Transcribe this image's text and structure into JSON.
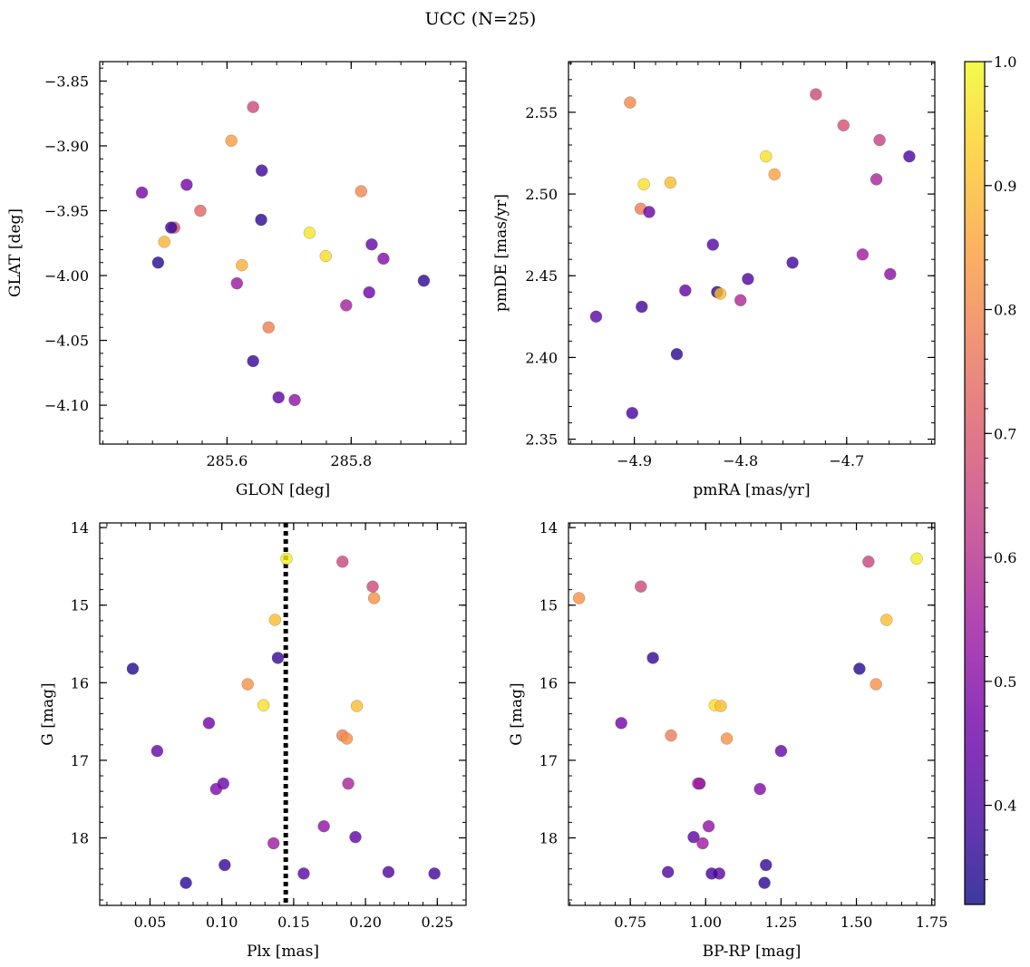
{
  "figure_title": "UCC (N=25)",
  "colorbar": {
    "range": [
      0.32,
      1.0
    ],
    "ticks": [
      0.4,
      0.5,
      0.6,
      0.7,
      0.8,
      0.9,
      1.0
    ],
    "tick_labels": [
      "0.4",
      "0.5",
      "0.6",
      "0.7",
      "0.8",
      "0.9",
      "1.0"
    ],
    "colormap": "plasma",
    "stops": [
      "#0d0887",
      "#46039f",
      "#7201a8",
      "#9c179e",
      "#bd3786",
      "#d8576b",
      "#ed7953",
      "#fb9f3a",
      "#fdca26",
      "#f0f921"
    ]
  },
  "chart_data": [
    {
      "type": "scatter",
      "id": "glon-glat",
      "xlabel": "GLON [deg]",
      "ylabel": "GLAT [deg]",
      "xlim": [
        285.395,
        285.985
      ],
      "ylim": [
        -4.13,
        -3.835
      ],
      "y_inverted": false,
      "xticks": [
        285.6,
        285.8
      ],
      "xtick_labels": [
        "285.6",
        "285.8"
      ],
      "yticks": [
        -3.85,
        -3.9,
        -3.95,
        -4.0,
        -4.05,
        -4.1
      ],
      "ytick_labels": [
        "−3.85",
        "−3.90",
        "−3.95",
        "−4.00",
        "−4.05",
        "−4.10"
      ],
      "points": [
        {
          "x": 285.642,
          "y": -3.87,
          "c": 0.66
        },
        {
          "x": 285.607,
          "y": -3.896,
          "c": 0.84
        },
        {
          "x": 285.656,
          "y": -3.919,
          "c": 0.38
        },
        {
          "x": 285.463,
          "y": -3.936,
          "c": 0.48
        },
        {
          "x": 285.535,
          "y": -3.93,
          "c": 0.47
        },
        {
          "x": 285.816,
          "y": -3.935,
          "c": 0.8
        },
        {
          "x": 285.557,
          "y": -3.95,
          "c": 0.73
        },
        {
          "x": 285.655,
          "y": -3.957,
          "c": 0.36
        },
        {
          "x": 285.515,
          "y": -3.963,
          "c": 0.68
        },
        {
          "x": 285.51,
          "y": -3.963,
          "c": 0.37
        },
        {
          "x": 285.733,
          "y": -3.967,
          "c": 0.97
        },
        {
          "x": 285.499,
          "y": -3.974,
          "c": 0.88
        },
        {
          "x": 285.833,
          "y": -3.976,
          "c": 0.44
        },
        {
          "x": 285.759,
          "y": -3.985,
          "c": 0.95
        },
        {
          "x": 285.852,
          "y": -3.987,
          "c": 0.5
        },
        {
          "x": 285.489,
          "y": -3.99,
          "c": 0.35
        },
        {
          "x": 285.624,
          "y": -3.992,
          "c": 0.87
        },
        {
          "x": 285.917,
          "y": -4.004,
          "c": 0.36
        },
        {
          "x": 285.616,
          "y": -4.006,
          "c": 0.54
        },
        {
          "x": 285.829,
          "y": -4.013,
          "c": 0.46
        },
        {
          "x": 285.792,
          "y": -4.023,
          "c": 0.56
        },
        {
          "x": 285.667,
          "y": -4.04,
          "c": 0.78
        },
        {
          "x": 285.642,
          "y": -4.066,
          "c": 0.37
        },
        {
          "x": 285.683,
          "y": -4.094,
          "c": 0.43
        },
        {
          "x": 285.709,
          "y": -4.096,
          "c": 0.52
        }
      ]
    },
    {
      "type": "scatter",
      "id": "pmra-pmde",
      "xlabel": "pmRA [mas/yr]",
      "ylabel": "pmDE [mas/yr]",
      "xlim": [
        -4.962,
        -4.617
      ],
      "ylim": [
        2.347,
        2.581
      ],
      "y_inverted": false,
      "xticks": [
        -4.9,
        -4.8,
        -4.7
      ],
      "xtick_labels": [
        "−4.9",
        "−4.8",
        "−4.7"
      ],
      "yticks": [
        2.35,
        2.4,
        2.45,
        2.5,
        2.55
      ],
      "ytick_labels": [
        "2.35",
        "2.40",
        "2.45",
        "2.50",
        "2.55"
      ],
      "points": [
        {
          "x": -4.729,
          "y": 2.561,
          "c": 0.66
        },
        {
          "x": -4.904,
          "y": 2.556,
          "c": 0.8
        },
        {
          "x": -4.703,
          "y": 2.542,
          "c": 0.68
        },
        {
          "x": -4.669,
          "y": 2.533,
          "c": 0.64
        },
        {
          "x": -4.776,
          "y": 2.523,
          "c": 0.96
        },
        {
          "x": -4.641,
          "y": 2.523,
          "c": 0.4
        },
        {
          "x": -4.768,
          "y": 2.512,
          "c": 0.85
        },
        {
          "x": -4.672,
          "y": 2.509,
          "c": 0.57
        },
        {
          "x": -4.866,
          "y": 2.507,
          "c": 0.9
        },
        {
          "x": -4.891,
          "y": 2.506,
          "c": 0.96
        },
        {
          "x": -4.894,
          "y": 2.491,
          "c": 0.78
        },
        {
          "x": -4.886,
          "y": 2.489,
          "c": 0.45
        },
        {
          "x": -4.826,
          "y": 2.469,
          "c": 0.42
        },
        {
          "x": -4.685,
          "y": 2.463,
          "c": 0.55
        },
        {
          "x": -4.751,
          "y": 2.458,
          "c": 0.38
        },
        {
          "x": -4.659,
          "y": 2.451,
          "c": 0.51
        },
        {
          "x": -4.793,
          "y": 2.448,
          "c": 0.41
        },
        {
          "x": -4.852,
          "y": 2.441,
          "c": 0.44
        },
        {
          "x": -4.822,
          "y": 2.44,
          "c": 0.36
        },
        {
          "x": -4.819,
          "y": 2.439,
          "c": 0.9
        },
        {
          "x": -4.8,
          "y": 2.435,
          "c": 0.58
        },
        {
          "x": -4.936,
          "y": 2.425,
          "c": 0.43
        },
        {
          "x": -4.893,
          "y": 2.431,
          "c": 0.39
        },
        {
          "x": -4.86,
          "y": 2.402,
          "c": 0.36
        },
        {
          "x": -4.902,
          "y": 2.366,
          "c": 0.4
        }
      ]
    },
    {
      "type": "scatter",
      "id": "plx-g",
      "xlabel": "Plx [mas]",
      "ylabel": "G [mag]",
      "xlim": [
        0.015,
        0.27
      ],
      "ylim": [
        18.87,
        13.94
      ],
      "y_inverted": true,
      "vline": {
        "x": 0.1445,
        "style": "dotted"
      },
      "xticks": [
        0.05,
        0.1,
        0.15,
        0.2,
        0.25
      ],
      "xtick_labels": [
        "0.05",
        "0.10",
        "0.15",
        "0.20",
        "0.25"
      ],
      "yticks": [
        14,
        15,
        16,
        17,
        18
      ],
      "ytick_labels": [
        "14",
        "15",
        "16",
        "17",
        "18"
      ],
      "points": [
        {
          "x": 0.145,
          "y": 14.4,
          "c": 0.98
        },
        {
          "x": 0.184,
          "y": 14.44,
          "c": 0.65
        },
        {
          "x": 0.205,
          "y": 14.76,
          "c": 0.66
        },
        {
          "x": 0.206,
          "y": 14.91,
          "c": 0.82
        },
        {
          "x": 0.137,
          "y": 15.19,
          "c": 0.9
        },
        {
          "x": 0.139,
          "y": 15.68,
          "c": 0.37
        },
        {
          "x": 0.038,
          "y": 15.82,
          "c": 0.35
        },
        {
          "x": 0.118,
          "y": 16.02,
          "c": 0.82
        },
        {
          "x": 0.129,
          "y": 16.29,
          "c": 0.96
        },
        {
          "x": 0.194,
          "y": 16.3,
          "c": 0.9
        },
        {
          "x": 0.091,
          "y": 16.52,
          "c": 0.47
        },
        {
          "x": 0.184,
          "y": 16.68,
          "c": 0.78
        },
        {
          "x": 0.187,
          "y": 16.72,
          "c": 0.82
        },
        {
          "x": 0.055,
          "y": 16.88,
          "c": 0.45
        },
        {
          "x": 0.101,
          "y": 17.3,
          "c": 0.46
        },
        {
          "x": 0.188,
          "y": 17.3,
          "c": 0.57
        },
        {
          "x": 0.096,
          "y": 17.37,
          "c": 0.49
        },
        {
          "x": 0.171,
          "y": 17.85,
          "c": 0.52
        },
        {
          "x": 0.193,
          "y": 17.99,
          "c": 0.43
        },
        {
          "x": 0.136,
          "y": 18.07,
          "c": 0.55
        },
        {
          "x": 0.102,
          "y": 18.35,
          "c": 0.37
        },
        {
          "x": 0.216,
          "y": 18.44,
          "c": 0.41
        },
        {
          "x": 0.157,
          "y": 18.46,
          "c": 0.43
        },
        {
          "x": 0.248,
          "y": 18.46,
          "c": 0.39
        },
        {
          "x": 0.075,
          "y": 18.58,
          "c": 0.36
        }
      ]
    },
    {
      "type": "scatter",
      "id": "bprp-g",
      "xlabel": "BP-RP [mag]",
      "ylabel": "G [mag]",
      "xlim": [
        0.545,
        1.76
      ],
      "ylim": [
        18.87,
        13.94
      ],
      "y_inverted": true,
      "xticks": [
        0.75,
        1.0,
        1.25,
        1.5,
        1.75
      ],
      "xtick_labels": [
        "0.75",
        "1.00",
        "1.25",
        "1.50",
        "1.75"
      ],
      "yticks": [
        14,
        15,
        16,
        17,
        18
      ],
      "ytick_labels": [
        "14",
        "15",
        "16",
        "17",
        "18"
      ],
      "points": [
        {
          "x": 1.7,
          "y": 14.4,
          "c": 0.98
        },
        {
          "x": 1.54,
          "y": 14.44,
          "c": 0.65
        },
        {
          "x": 0.785,
          "y": 14.76,
          "c": 0.66
        },
        {
          "x": 0.58,
          "y": 14.91,
          "c": 0.82
        },
        {
          "x": 1.6,
          "y": 15.19,
          "c": 0.9
        },
        {
          "x": 0.825,
          "y": 15.68,
          "c": 0.37
        },
        {
          "x": 1.51,
          "y": 15.82,
          "c": 0.35
        },
        {
          "x": 1.565,
          "y": 16.02,
          "c": 0.82
        },
        {
          "x": 1.03,
          "y": 16.29,
          "c": 0.96
        },
        {
          "x": 1.05,
          "y": 16.3,
          "c": 0.9
        },
        {
          "x": 0.72,
          "y": 16.52,
          "c": 0.47
        },
        {
          "x": 0.885,
          "y": 16.68,
          "c": 0.78
        },
        {
          "x": 1.07,
          "y": 16.72,
          "c": 0.82
        },
        {
          "x": 1.25,
          "y": 16.88,
          "c": 0.45
        },
        {
          "x": 0.98,
          "y": 17.3,
          "c": 0.46
        },
        {
          "x": 0.975,
          "y": 17.3,
          "c": 0.57
        },
        {
          "x": 1.18,
          "y": 17.37,
          "c": 0.49
        },
        {
          "x": 1.01,
          "y": 17.85,
          "c": 0.52
        },
        {
          "x": 0.96,
          "y": 17.99,
          "c": 0.43
        },
        {
          "x": 0.99,
          "y": 18.07,
          "c": 0.55
        },
        {
          "x": 1.2,
          "y": 18.35,
          "c": 0.37
        },
        {
          "x": 0.875,
          "y": 18.44,
          "c": 0.41
        },
        {
          "x": 1.045,
          "y": 18.46,
          "c": 0.43
        },
        {
          "x": 1.02,
          "y": 18.46,
          "c": 0.39
        },
        {
          "x": 1.195,
          "y": 18.58,
          "c": 0.36
        }
      ]
    }
  ]
}
